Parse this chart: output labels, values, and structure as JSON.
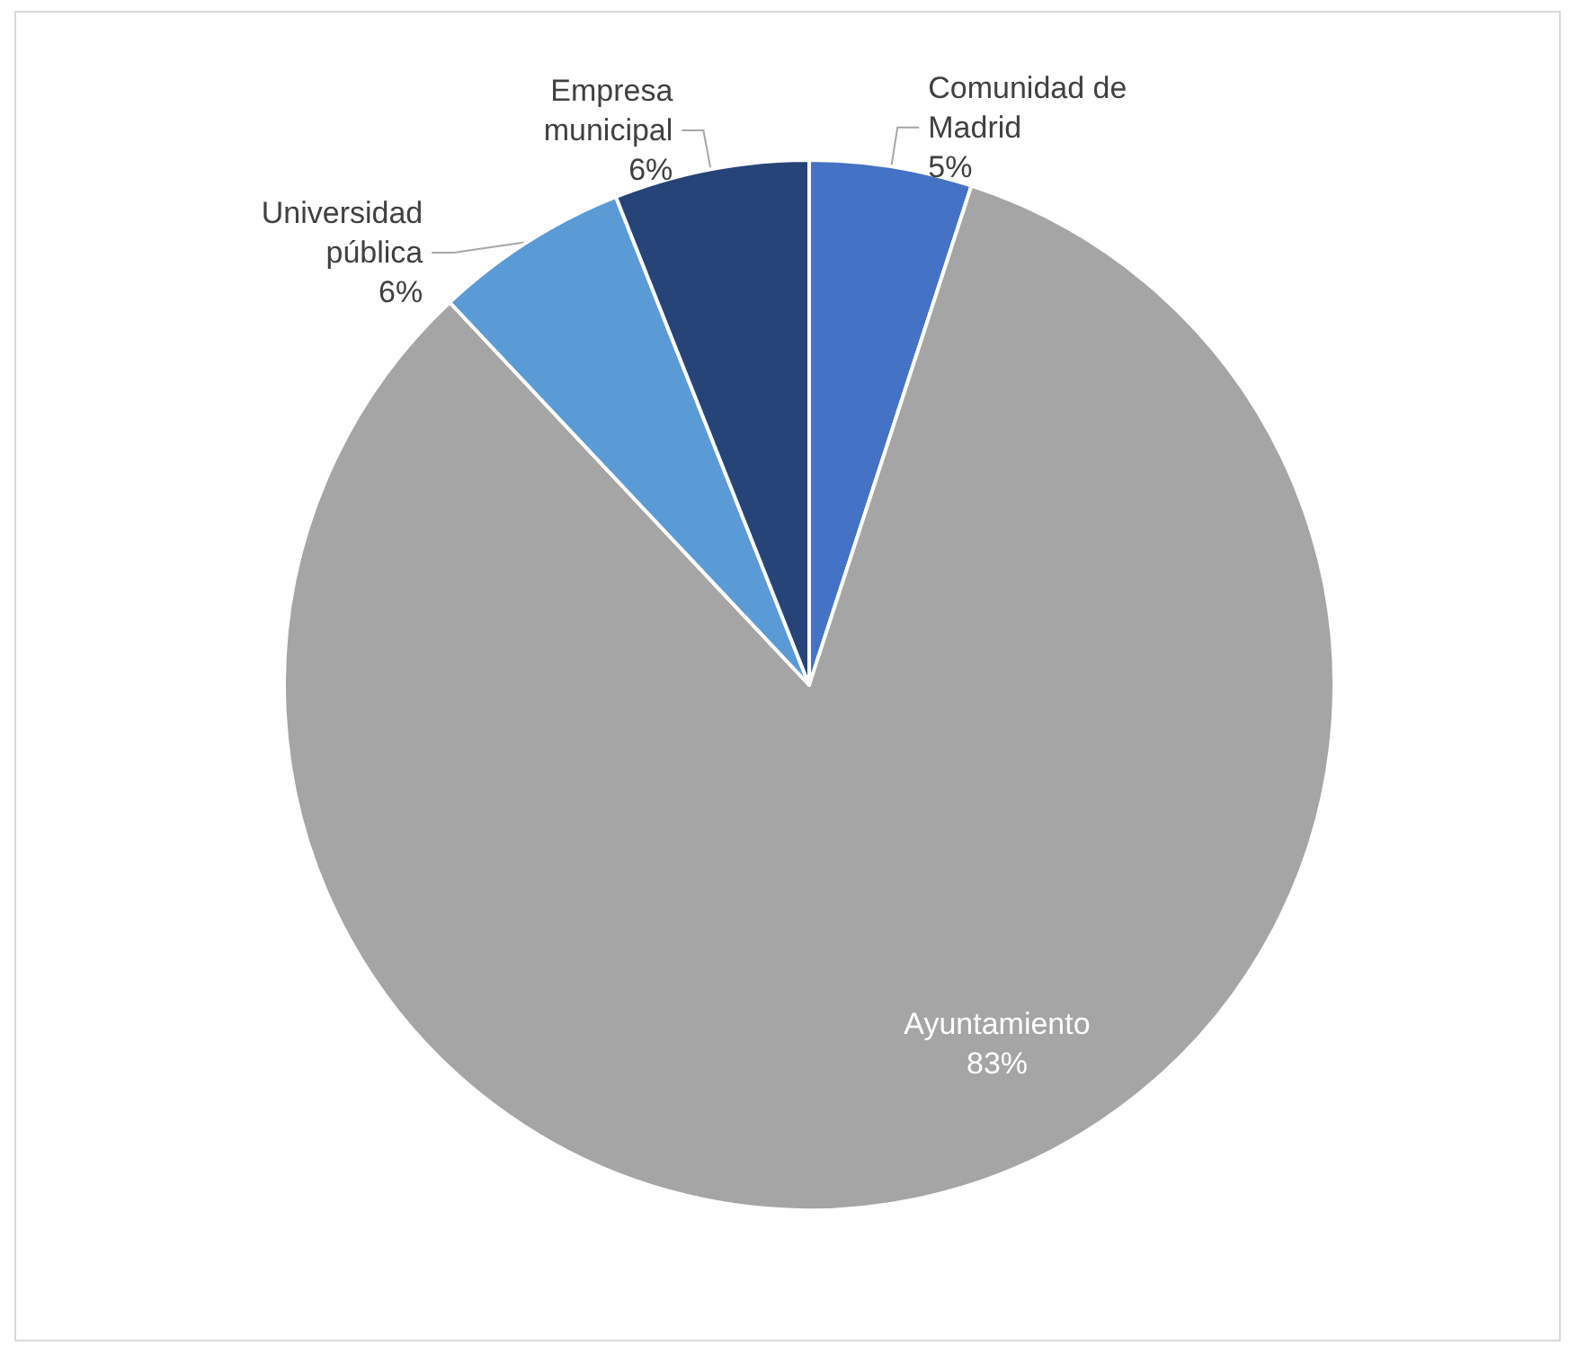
{
  "chart_data": {
    "type": "pie",
    "categories": [
      "Comunidad de Madrid",
      "Ayuntamiento",
      "Universidad pública",
      "Empresa municipal"
    ],
    "values": [
      5,
      83,
      6,
      6
    ],
    "colors": [
      "#4472c4",
      "#a5a5a5",
      "#5b9bd5",
      "#264478"
    ],
    "value_labels": [
      "5%",
      "83%",
      "6%",
      "6%"
    ],
    "legend": false
  }
}
